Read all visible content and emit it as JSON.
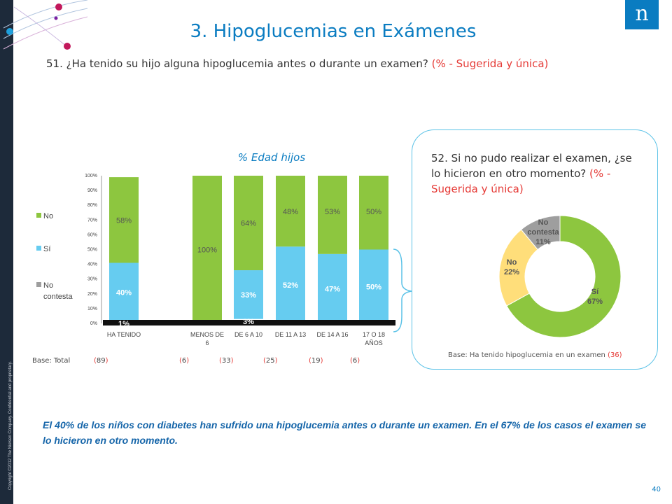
{
  "slide": {
    "title": "3. Hipoglucemias en Exámenes",
    "question_main": "51. ¿Ha tenido su hijo alguna hipoglucemia antes o durante un examen?",
    "question_note": "(% - Sugerida y única)",
    "copyright": "Copyright ©2012 The Nielsen Company. Confidential and proprietary.",
    "logo_letter": "n",
    "page_number": "40",
    "conclusion": "El 40% de los niños con diabetes han sufrido una hipoglucemia antes o durante un examen. En el 67% de los casos el examen se lo hicieron en otro momento."
  },
  "colors": {
    "green": "#8dc63f",
    "blue": "#66ccf0",
    "gray": "#9e9e9e",
    "yellow": "#ffde7a",
    "accent": "#0a7cc1",
    "red": "#e53935",
    "dark_strip": "#1d2a3a"
  },
  "bar_panel": {
    "base_label": "Base: Total",
    "bases": [
      "(89)",
      "(6)",
      "(33)",
      "(25)",
      "(19)",
      "(6)"
    ]
  },
  "donut_panel": {
    "question_main": "52. Si no pudo realizar el examen, ¿se lo hicieron en otro momento?",
    "question_note": "(% - Sugerida y única)",
    "base_text": "Base: Ha tenido hipoglucemia en un examen",
    "base_value": "(36)"
  },
  "chart_data": [
    {
      "type": "bar",
      "stacked": true,
      "title": "% Edad hijos",
      "categories": [
        "HA TENIDO",
        "MENOS DE 6",
        "DE 6 A 10",
        "DE 11 A 13",
        "DE 14 A 16",
        "17 O 18 AÑOS"
      ],
      "series": [
        {
          "name": "No contesta",
          "values": [
            1,
            0,
            3,
            0,
            0,
            0
          ],
          "labels": [
            "1%",
            "",
            "3%",
            "",
            "",
            ""
          ]
        },
        {
          "name": "Sí",
          "values": [
            40,
            0,
            33,
            52,
            47,
            50
          ],
          "labels": [
            "40%",
            "",
            "33%",
            "52%",
            "47%",
            "50%"
          ]
        },
        {
          "name": "No",
          "values": [
            58,
            100,
            64,
            48,
            53,
            50
          ],
          "labels": [
            "58%",
            "100%",
            "64%",
            "48%",
            "53%",
            "50%"
          ]
        }
      ],
      "legend": [
        "No",
        "Sí",
        "No contesta"
      ],
      "legend_position": "left",
      "ylim": [
        0,
        100
      ],
      "yticks": [
        "0%",
        "10%",
        "20%",
        "30%",
        "40%",
        "50%",
        "60%",
        "70%",
        "80%",
        "90%",
        "100%"
      ]
    },
    {
      "type": "pie",
      "donut": true,
      "slices": [
        {
          "name": "Sí",
          "value": 67,
          "label": "67%"
        },
        {
          "name": "No",
          "value": 22,
          "label": "22%"
        },
        {
          "name": "No contesta",
          "value": 11,
          "label": "11%"
        }
      ]
    }
  ]
}
